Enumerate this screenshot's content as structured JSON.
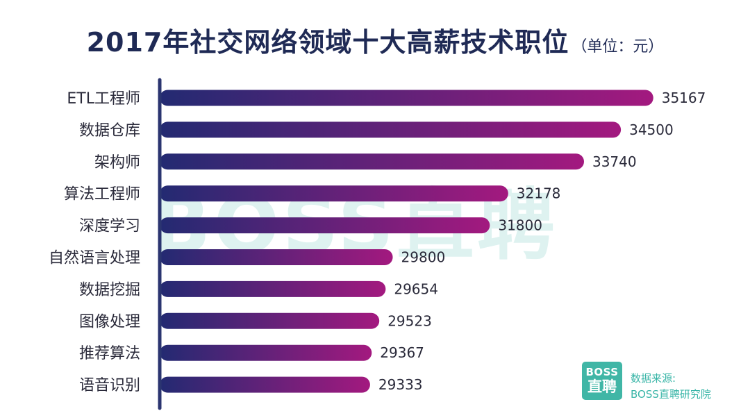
{
  "title": "2017年社交网络领域十大高薪技术职位",
  "unit_note": "（单位：元）",
  "watermark": "BOSS直聘",
  "source": {
    "logo_line1": "BOSS",
    "logo_line2": "直聘",
    "label": "数据来源:",
    "name": "BOSS直聘研究院"
  },
  "colors": {
    "bar_start": "#232a72",
    "bar_end": "#a3197f",
    "axis": "#2b3570",
    "title": "#1f2a55",
    "brand": "#40b6a6"
  },
  "chart_data": {
    "type": "bar",
    "orientation": "horizontal",
    "title": "2017年社交网络领域十大高薪技术职位",
    "unit": "（单位：元）",
    "categories": [
      "ETL工程师",
      "数据仓库",
      "架构师",
      "算法工程师",
      "深度学习",
      "自然语言处理",
      "数据挖掘",
      "图像处理",
      "推荐算法",
      "语音识别"
    ],
    "values": [
      35167,
      34500,
      33740,
      32178,
      31800,
      29800,
      29654,
      29523,
      29367,
      29333
    ],
    "value_labels": [
      "35167",
      "34500",
      "33740",
      "32178",
      "31800",
      "29800",
      "29654",
      "29523",
      "29367",
      "29333"
    ],
    "xlim": [
      25000,
      35800
    ],
    "grid": false,
    "legend": "none"
  }
}
